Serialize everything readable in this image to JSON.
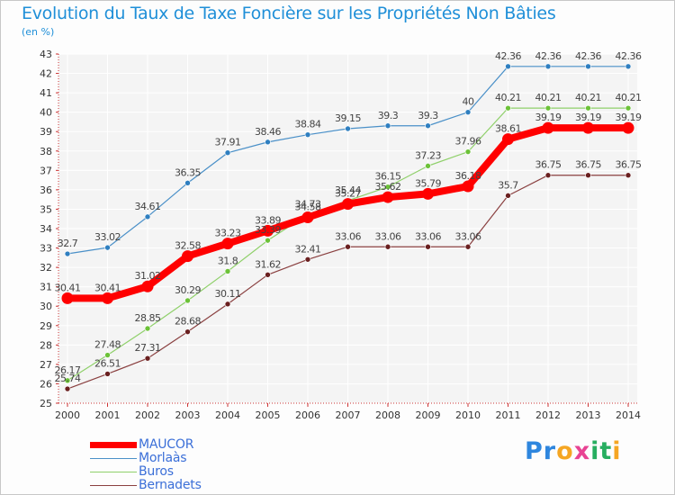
{
  "title": "Evolution du Taux de Taxe Foncière sur les Propriétés Non Bâties",
  "subtitle": "(en %)",
  "brand": {
    "letters": [
      "P",
      "r",
      "o",
      "x",
      "i",
      "t",
      "i"
    ],
    "colors": [
      "#2e86de",
      "#2e86de",
      "#f5a623",
      "#e84393",
      "#27ae60",
      "#27ae60",
      "#f5a623"
    ]
  },
  "chart_data": {
    "type": "line",
    "title": "Evolution du Taux de Taxe Foncière sur les Propriétés Non Bâties",
    "ylabel": "(en %)",
    "xlabel": "",
    "categories": [
      "2000",
      "2001",
      "2002",
      "2003",
      "2004",
      "2005",
      "2006",
      "2007",
      "2008",
      "2009",
      "2010",
      "2011",
      "2012",
      "2013",
      "2014"
    ],
    "ylim": [
      25,
      43
    ],
    "yticks": [
      25,
      26,
      27,
      28,
      29,
      30,
      31,
      32,
      33,
      34,
      35,
      36,
      37,
      38,
      39,
      40,
      41,
      42,
      43
    ],
    "grid": true,
    "legend_position": "bottom-left",
    "series": [
      {
        "name": "Morlaàs",
        "color": "#4a90c8",
        "marker": "#2f7fc0",
        "width": 1.2,
        "labels": [
          "32.7",
          "33.02",
          "34.61",
          "36.35",
          "37.91",
          "38.46",
          "38.84",
          "39.15",
          "39.3",
          "39.3",
          "40",
          "42.36",
          "42.36",
          "42.36",
          "42.36"
        ],
        "values": [
          32.7,
          33.02,
          34.61,
          36.35,
          37.91,
          38.46,
          38.84,
          39.15,
          39.3,
          39.3,
          40,
          42.36,
          42.36,
          42.36,
          42.36
        ]
      },
      {
        "name": "Buros",
        "color": "#8fd06a",
        "marker": "#6cc238",
        "width": 1.2,
        "labels": [
          "26.17",
          "27.48",
          "28.85",
          "30.29",
          "31.8",
          "33.39",
          "34.73",
          "35.44",
          "36.15",
          "37.23",
          "37.96",
          "40.21",
          "40.21",
          "40.21",
          "40.21"
        ],
        "values": [
          26.17,
          27.48,
          28.85,
          30.29,
          31.8,
          33.39,
          34.73,
          35.44,
          36.15,
          37.23,
          37.96,
          40.21,
          40.21,
          40.21,
          40.21
        ]
      },
      {
        "name": "Bernadets",
        "color": "#8a4040",
        "marker": "#6a2020",
        "width": 1.2,
        "labels": [
          "25.74",
          "26.51",
          "27.31",
          "28.68",
          "30.11",
          "31.62",
          "32.41",
          "33.06",
          "33.06",
          "33.06",
          "33.06",
          "35.7",
          "36.75",
          "36.75",
          "36.75"
        ],
        "values": [
          25.74,
          26.51,
          27.31,
          28.68,
          30.11,
          31.62,
          32.41,
          33.06,
          33.06,
          33.06,
          33.06,
          35.7,
          36.75,
          36.75,
          36.75
        ]
      },
      {
        "name": "MAUCOR",
        "color": "#ff0000",
        "marker": "#ff0000",
        "width": 8,
        "labels": [
          "30.41",
          "30.41",
          "31.02",
          "32.58",
          "33.23",
          "33.89",
          "34.58",
          "35.27",
          "35.62",
          "35.79",
          "36.18",
          "38.61",
          "39.19",
          "39.19",
          "39.19"
        ],
        "values": [
          30.41,
          30.41,
          31.02,
          32.58,
          33.23,
          33.89,
          34.58,
          35.27,
          35.62,
          35.79,
          36.18,
          38.61,
          39.19,
          39.19,
          39.19
        ]
      }
    ],
    "legend_order": [
      "MAUCOR",
      "Morlaàs",
      "Buros",
      "Bernadets"
    ]
  }
}
